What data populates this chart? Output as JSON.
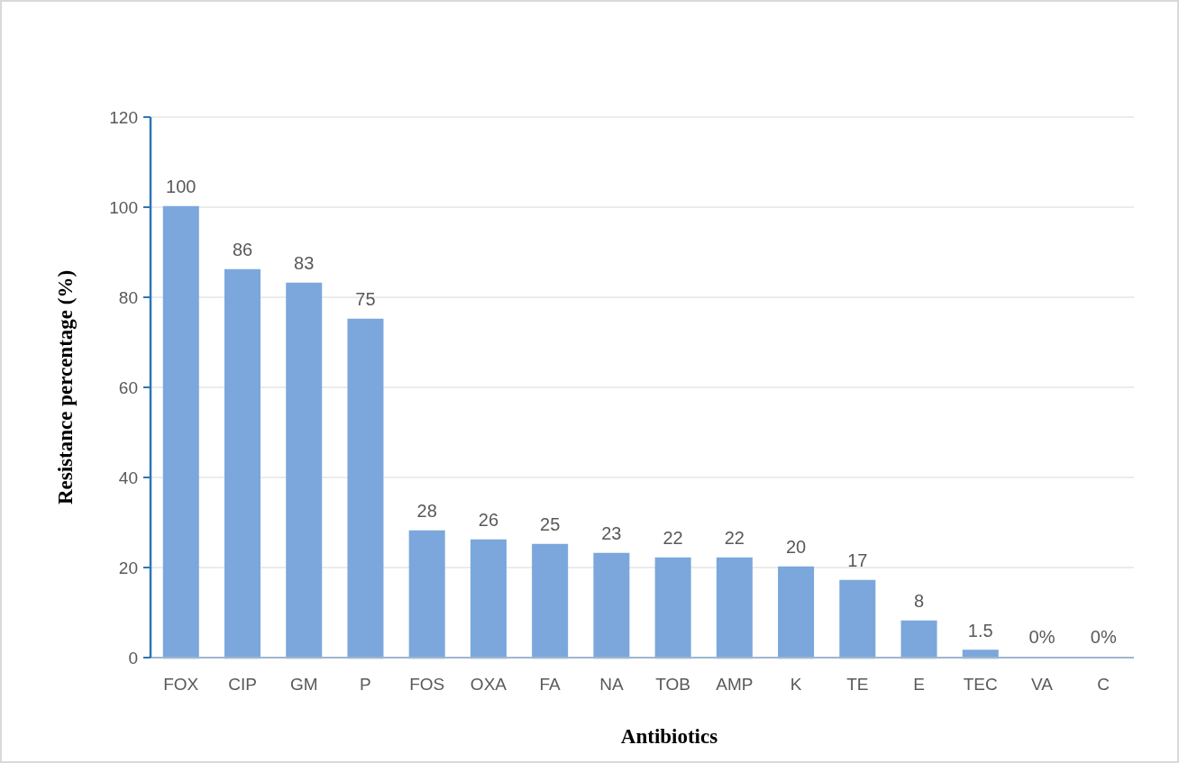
{
  "chart_data": {
    "type": "bar",
    "xlabel": "Antibiotics",
    "ylabel": "Resistance percentage (%)",
    "categories": [
      "FOX",
      "CIP",
      "GM",
      "P",
      "FOS",
      "OXA",
      "FA",
      "NA",
      "TOB",
      "AMP",
      "K",
      "TE",
      "E",
      "TEC",
      "VA",
      "C"
    ],
    "values": [
      100,
      86,
      83,
      75,
      28,
      26,
      25,
      23,
      22,
      22,
      20,
      17,
      8,
      1.5,
      0,
      0
    ],
    "value_labels": [
      "100",
      "86",
      "83",
      "75",
      "28",
      "26",
      "25",
      "23",
      "22",
      "22",
      "20",
      "17",
      "8",
      "1.5",
      "0%",
      "0%"
    ],
    "color": "#7ba7dc",
    "ylim": [
      0,
      120
    ],
    "yticks": [
      0,
      20,
      40,
      60,
      80,
      100,
      120
    ],
    "grid": "y"
  }
}
